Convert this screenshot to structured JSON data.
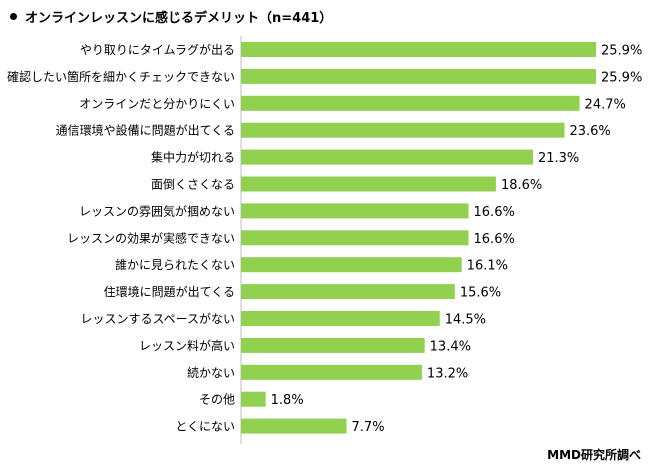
{
  "chart_data": {
    "type": "bar",
    "orientation": "horizontal",
    "title": "オンラインレッスンに感じるデメリット（n=441）",
    "source": "MMD研究所調べ",
    "bar_color": "#92D050",
    "grid": false,
    "legend": "none",
    "xlim": [
      0,
      30
    ],
    "categories": [
      "やり取りにタイムラグが出る",
      "確認したい箇所を細かくチェックできない",
      "オンラインだと分かりにくい",
      "通信環境や設備に問題が出てくる",
      "集中力が切れる",
      "面倒くさくなる",
      "レッスンの雰囲気が掴めない",
      "レッスンの効果が実感できない",
      "誰かに見られたくない",
      "住環境に問題が出てくる",
      "レッスンするスペースがない",
      "レッスン料が高い",
      "続かない",
      "その他",
      "とくにない"
    ],
    "values": [
      25.9,
      25.9,
      24.7,
      23.6,
      21.3,
      18.6,
      16.6,
      16.6,
      16.1,
      15.6,
      14.5,
      13.4,
      13.2,
      1.8,
      7.7
    ],
    "value_labels": [
      "25.9%",
      "25.9%",
      "24.7%",
      "23.6%",
      "21.3%",
      "18.6%",
      "16.6%",
      "16.6%",
      "16.1%",
      "15.6%",
      "14.5%",
      "13.4%",
      "13.2%",
      "1.8%",
      "7.7%"
    ]
  }
}
